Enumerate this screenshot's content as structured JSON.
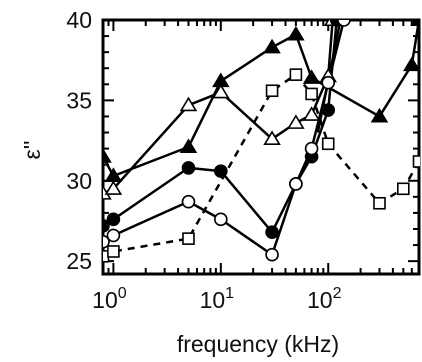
{
  "chart_data": {
    "type": "line",
    "title": "",
    "xlabel": "frequency (kHz)",
    "ylabel": "ε''",
    "x_scale": "log",
    "xlim": [
      0.8,
      700
    ],
    "ylim": [
      24.2,
      40
    ],
    "grid": false,
    "legend": "none",
    "x_ticks": [
      {
        "value": 1,
        "base": "10",
        "exp": "0"
      },
      {
        "value": 10,
        "base": "10",
        "exp": "1"
      },
      {
        "value": 100,
        "base": "10",
        "exp": "2"
      }
    ],
    "y_ticks": [
      25,
      30,
      35,
      40
    ],
    "series": [
      {
        "marker": "triangle-filled",
        "line": "solid",
        "x": [
          0.8,
          1,
          5,
          10,
          30,
          50,
          70,
          300,
          600,
          700
        ],
        "y": [
          31.5,
          30.3,
          32.1,
          36.2,
          38.3,
          39.1,
          36.4,
          34.0,
          37.2,
          40.0
        ]
      },
      {
        "marker": "triangle-open",
        "line": "solid",
        "x": [
          0.8,
          1,
          5,
          10,
          30,
          50,
          70,
          100,
          110
        ],
        "y": [
          29.2,
          29.5,
          34.7,
          35.5,
          32.6,
          33.6,
          34.1,
          36.5,
          40.0
        ]
      },
      {
        "marker": "circle-filled",
        "line": "solid",
        "x": [
          0.8,
          1,
          5,
          10,
          30,
          50,
          70,
          100,
          120
        ],
        "y": [
          27.2,
          27.6,
          30.8,
          30.6,
          26.8,
          29.8,
          31.5,
          34.4,
          40.0
        ]
      },
      {
        "marker": "circle-open",
        "line": "solid",
        "x": [
          0.8,
          1,
          5,
          10,
          30,
          50,
          70,
          100,
          140
        ],
        "y": [
          26.2,
          26.6,
          28.7,
          27.6,
          25.4,
          29.8,
          32.0,
          36.1,
          40.0
        ]
      },
      {
        "marker": "square-open",
        "line": "dashed",
        "x": [
          0.8,
          1,
          5,
          30,
          50,
          70,
          100,
          300,
          500,
          700
        ],
        "y": [
          25.3,
          25.6,
          26.4,
          35.6,
          36.6,
          35.4,
          32.3,
          28.6,
          29.5,
          31.2
        ]
      },
      {
        "marker": "none",
        "line": "solid",
        "x": [
          80,
          130
        ],
        "y": [
          33.0,
          40.0
        ]
      }
    ]
  }
}
